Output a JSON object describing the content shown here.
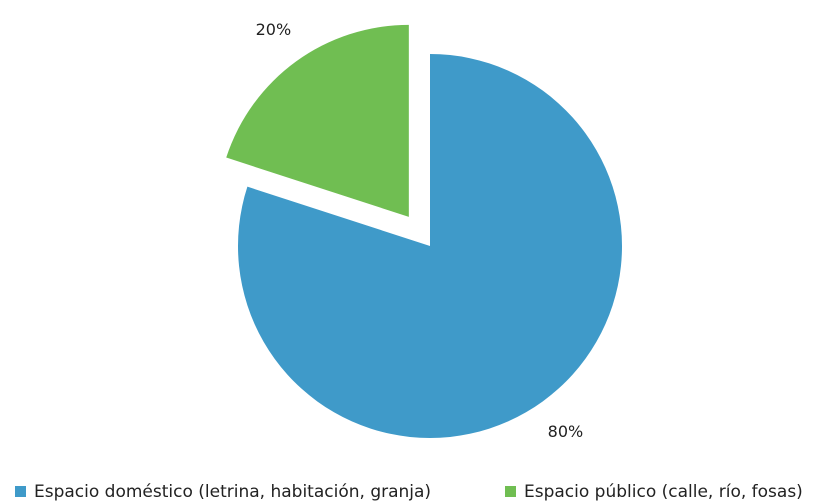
{
  "chart_data": {
    "type": "pie",
    "categories": [
      "Espacio doméstico (letrina, habitación, granja)",
      "Espacio público (calle, río, fosas)"
    ],
    "values": [
      80,
      20
    ],
    "value_labels": [
      "80%",
      "20%"
    ],
    "colors": [
      "#3f9ac9",
      "#70be52"
    ],
    "exploded": [
      false,
      true
    ],
    "legend": "bottom"
  }
}
